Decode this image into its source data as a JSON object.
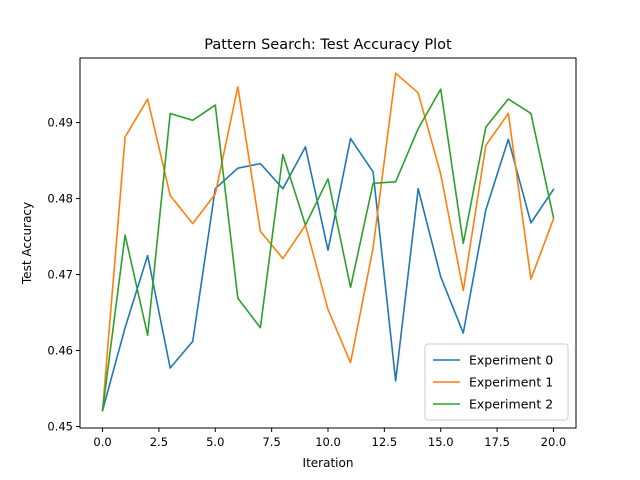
{
  "chart_data": {
    "type": "line",
    "title": "Pattern Search: Test Accuracy Plot",
    "xlabel": "Iteration",
    "ylabel": "Test Accuracy",
    "xlim": [
      -1.0,
      21.0
    ],
    "ylim": [
      0.4498,
      0.4985
    ],
    "xticks": [
      0,
      2.5,
      5,
      7.5,
      10,
      12.5,
      15,
      17.5,
      20
    ],
    "xtick_labels": [
      "0.0",
      "2.5",
      "5.0",
      "7.5",
      "10.0",
      "12.5",
      "15.0",
      "17.5",
      "20.0"
    ],
    "yticks": [
      0.45,
      0.46,
      0.47,
      0.48,
      0.49
    ],
    "ytick_labels": [
      "0.45",
      "0.46",
      "0.47",
      "0.48",
      "0.49"
    ],
    "grid": false,
    "legend_position": "lower-right",
    "x": [
      0,
      1,
      2,
      3,
      4,
      5,
      6,
      7,
      8,
      9,
      10,
      11,
      12,
      13,
      14,
      15,
      16,
      17,
      18,
      19,
      20
    ],
    "series": [
      {
        "name": "Experiment 0",
        "color": "#1f77b4",
        "values": [
          0.4521,
          0.463,
          0.4725,
          0.4577,
          0.4612,
          0.4813,
          0.484,
          0.4846,
          0.4813,
          0.4868,
          0.4732,
          0.4879,
          0.4835,
          0.456,
          0.4813,
          0.4697,
          0.4623,
          0.4785,
          0.4878,
          0.4768,
          0.4812
        ]
      },
      {
        "name": "Experiment 1",
        "color": "#ff7f0e",
        "values": [
          0.4521,
          0.4881,
          0.4931,
          0.4804,
          0.4767,
          0.4806,
          0.4947,
          0.4757,
          0.4721,
          0.4765,
          0.4654,
          0.4584,
          0.4735,
          0.4965,
          0.4939,
          0.4832,
          0.4679,
          0.487,
          0.4912,
          0.4694,
          0.4773
        ]
      },
      {
        "name": "Experiment 2",
        "color": "#2ca02c",
        "values": [
          0.4521,
          0.4752,
          0.462,
          0.4912,
          0.4903,
          0.4923,
          0.4669,
          0.463,
          0.4858,
          0.4765,
          0.4826,
          0.4683,
          0.482,
          0.4822,
          0.4892,
          0.4944,
          0.4741,
          0.4894,
          0.4931,
          0.4912,
          0.4775
        ]
      }
    ]
  }
}
